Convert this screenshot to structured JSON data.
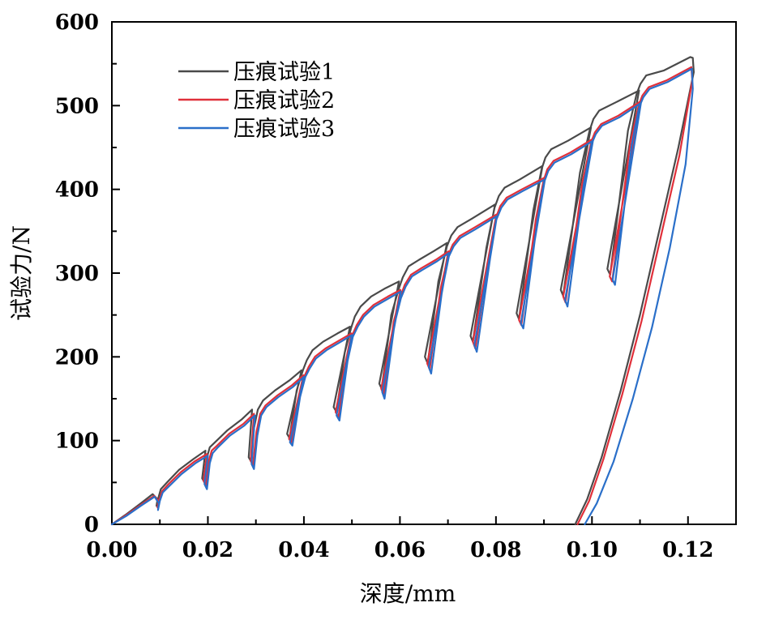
{
  "chart_data": {
    "type": "line",
    "title": "",
    "xlabel": "深度/mm",
    "ylabel": "试验力/N",
    "xlim": [
      0,
      0.13
    ],
    "ylim": [
      0,
      600
    ],
    "xticks": [
      "0.00",
      "0.02",
      "0.04",
      "0.06",
      "0.08",
      "0.10",
      "0.12"
    ],
    "yticks": [
      "0",
      "100",
      "200",
      "300",
      "400",
      "500",
      "600"
    ],
    "legend_position": "top-left",
    "grid": false,
    "series": [
      {
        "name": "压痕试验1",
        "color": "#4a4a4a",
        "x": [
          0,
          0.003,
          0.006,
          0.0085,
          0.0095,
          0.0093,
          0.0097,
          0.0102,
          0.0115,
          0.014,
          0.017,
          0.0195,
          0.0188,
          0.0193,
          0.0198,
          0.0204,
          0.0215,
          0.024,
          0.027,
          0.0292,
          0.0285,
          0.029,
          0.0296,
          0.0304,
          0.0315,
          0.034,
          0.037,
          0.0395,
          0.0365,
          0.037,
          0.0385,
          0.0398,
          0.0406,
          0.0418,
          0.044,
          0.047,
          0.0496,
          0.0462,
          0.0468,
          0.0485,
          0.0498,
          0.0506,
          0.0518,
          0.054,
          0.057,
          0.0598,
          0.0557,
          0.0562,
          0.0582,
          0.0598,
          0.0606,
          0.0618,
          0.064,
          0.067,
          0.0698,
          0.0652,
          0.0658,
          0.068,
          0.0698,
          0.0707,
          0.072,
          0.075,
          0.0798,
          0.0747,
          0.0752,
          0.078,
          0.0797,
          0.0806,
          0.0818,
          0.085,
          0.0897,
          0.0843,
          0.0848,
          0.0878,
          0.0895,
          0.0903,
          0.0915,
          0.095,
          0.0998,
          0.0935,
          0.094,
          0.0975,
          0.0995,
          0.1003,
          0.1015,
          0.105,
          0.1098,
          0.1032,
          0.1038,
          0.1075,
          0.1093,
          0.1101,
          0.1113,
          0.115,
          0.1205,
          0.121,
          0.1212,
          0.118,
          0.114,
          0.11,
          0.106,
          0.102,
          0.099,
          0.0965
        ],
        "y": [
          0,
          12,
          25,
          36,
          30,
          22,
          32,
          42,
          50,
          65,
          78,
          88,
          55,
          50,
          80,
          92,
          98,
          112,
          125,
          137,
          80,
          75,
          115,
          137,
          148,
          160,
          172,
          184,
          108,
          103,
          160,
          184,
          196,
          208,
          218,
          228,
          236,
          140,
          134,
          205,
          234,
          248,
          260,
          272,
          282,
          290,
          168,
          162,
          250,
          282,
          295,
          308,
          316,
          326,
          336,
          200,
          192,
          290,
          332,
          345,
          355,
          365,
          382,
          225,
          218,
          330,
          378,
          392,
          402,
          412,
          428,
          252,
          245,
          375,
          424,
          438,
          448,
          458,
          474,
          280,
          273,
          420,
          470,
          484,
          494,
          504,
          518,
          305,
          298,
          470,
          514,
          526,
          536,
          542,
          558,
          557,
          540,
          450,
          350,
          250,
          160,
          80,
          30,
          0
        ]
      },
      {
        "name": "压痕试验2",
        "color": "#e0303a",
        "x": [
          0,
          0.003,
          0.006,
          0.0088,
          0.0097,
          0.0095,
          0.0099,
          0.0105,
          0.0118,
          0.0143,
          0.0172,
          0.0198,
          0.0191,
          0.0196,
          0.0202,
          0.0208,
          0.0219,
          0.0244,
          0.0274,
          0.0296,
          0.0289,
          0.0294,
          0.0301,
          0.0309,
          0.032,
          0.0345,
          0.0375,
          0.0399,
          0.0369,
          0.0374,
          0.039,
          0.0402,
          0.041,
          0.0423,
          0.0445,
          0.0475,
          0.0499,
          0.0466,
          0.0472,
          0.0489,
          0.0501,
          0.051,
          0.0523,
          0.0545,
          0.0575,
          0.0601,
          0.0561,
          0.0566,
          0.0587,
          0.0601,
          0.061,
          0.0623,
          0.0645,
          0.0675,
          0.0701,
          0.0657,
          0.0662,
          0.0685,
          0.0701,
          0.071,
          0.0724,
          0.0754,
          0.0801,
          0.0752,
          0.0757,
          0.0785,
          0.08,
          0.0809,
          0.0822,
          0.0854,
          0.0901,
          0.0848,
          0.0853,
          0.0883,
          0.0899,
          0.0907,
          0.092,
          0.0955,
          0.1001,
          0.094,
          0.0945,
          0.098,
          0.0998,
          0.1006,
          0.1019,
          0.1055,
          0.1101,
          0.1037,
          0.1042,
          0.108,
          0.1097,
          0.1105,
          0.1118,
          0.1155,
          0.1207,
          0.1209,
          0.1182,
          0.1142,
          0.1103,
          0.1063,
          0.1024,
          0.0994,
          0.097
        ],
        "y": [
          0,
          11,
          23,
          34,
          28,
          20,
          30,
          40,
          48,
          62,
          75,
          84,
          52,
          46,
          76,
          88,
          94,
          108,
          120,
          132,
          76,
          70,
          110,
          132,
          142,
          154,
          166,
          178,
          102,
          98,
          155,
          178,
          188,
          200,
          210,
          220,
          228,
          134,
          128,
          198,
          226,
          238,
          250,
          262,
          272,
          280,
          162,
          155,
          242,
          272,
          286,
          298,
          306,
          316,
          326,
          192,
          185,
          282,
          322,
          334,
          344,
          354,
          370,
          218,
          210,
          320,
          366,
          380,
          390,
          400,
          414,
          244,
          238,
          364,
          410,
          424,
          434,
          444,
          460,
          272,
          265,
          408,
          456,
          468,
          478,
          488,
          505,
          296,
          290,
          456,
          500,
          512,
          522,
          530,
          546,
          530,
          440,
          340,
          242,
          155,
          78,
          28,
          0
        ]
      },
      {
        "name": "压痕试验3",
        "color": "#2a6fc9",
        "x": [
          0,
          0.003,
          0.006,
          0.0089,
          0.0098,
          0.0096,
          0.01,
          0.0106,
          0.012,
          0.0145,
          0.0174,
          0.02,
          0.0193,
          0.0198,
          0.0204,
          0.021,
          0.0221,
          0.0246,
          0.0276,
          0.0298,
          0.0291,
          0.0296,
          0.0303,
          0.0311,
          0.0322,
          0.0347,
          0.0377,
          0.04,
          0.0371,
          0.0376,
          0.0392,
          0.0403,
          0.0412,
          0.0425,
          0.0447,
          0.0477,
          0.05,
          0.0468,
          0.0474,
          0.0491,
          0.0502,
          0.0512,
          0.0525,
          0.0547,
          0.0577,
          0.0602,
          0.0563,
          0.0568,
          0.0589,
          0.0602,
          0.0612,
          0.0625,
          0.0647,
          0.0677,
          0.0702,
          0.066,
          0.0665,
          0.0688,
          0.0702,
          0.0712,
          0.0726,
          0.0756,
          0.0802,
          0.0755,
          0.076,
          0.0788,
          0.0801,
          0.0811,
          0.0824,
          0.0856,
          0.0902,
          0.0852,
          0.0857,
          0.0886,
          0.09,
          0.0909,
          0.0922,
          0.0957,
          0.1002,
          0.0944,
          0.0949,
          0.0983,
          0.0999,
          0.1008,
          0.1021,
          0.1057,
          0.1102,
          0.1043,
          0.1048,
          0.1083,
          0.1098,
          0.1107,
          0.112,
          0.1157,
          0.1208,
          0.121,
          0.1195,
          0.1162,
          0.1125,
          0.1085,
          0.1045,
          0.101,
          0.0985
        ],
        "y": [
          0,
          10,
          22,
          33,
          25,
          17,
          28,
          38,
          46,
          60,
          73,
          82,
          48,
          42,
          73,
          85,
          92,
          106,
          118,
          130,
          72,
          66,
          106,
          130,
          140,
          152,
          164,
          176,
          98,
          94,
          152,
          176,
          186,
          198,
          208,
          218,
          226,
          130,
          124,
          195,
          224,
          236,
          248,
          260,
          270,
          278,
          158,
          150,
          240,
          270,
          284,
          296,
          304,
          314,
          324,
          188,
          180,
          280,
          320,
          332,
          342,
          352,
          368,
          214,
          206,
          318,
          364,
          378,
          388,
          398,
          412,
          240,
          234,
          362,
          408,
          422,
          432,
          442,
          458,
          268,
          260,
          406,
          454,
          466,
          476,
          486,
          503,
          292,
          286,
          454,
          498,
          510,
          520,
          528,
          544,
          520,
          430,
          330,
          235,
          150,
          75,
          25,
          0
        ]
      }
    ]
  }
}
